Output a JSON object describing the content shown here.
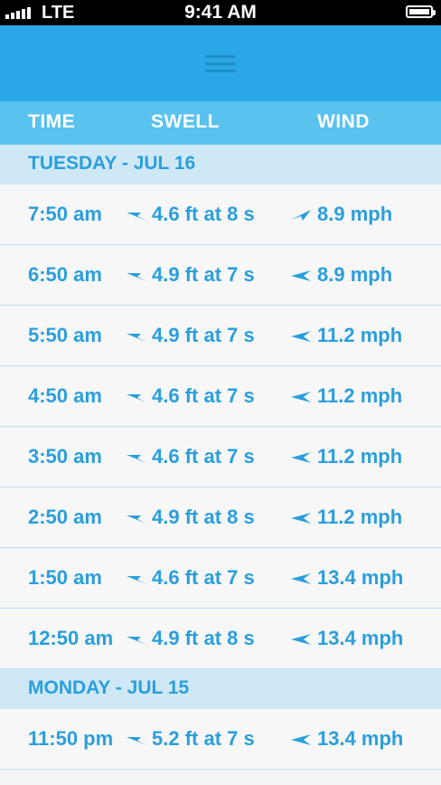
{
  "status_bar": {
    "carrier": "LTE",
    "time": "9:41 AM"
  },
  "columns": {
    "time": "TIME",
    "swell": "SWELL",
    "wind": "WIND"
  },
  "colors": {
    "accent": "#2aa7e6",
    "header_row": "#5ac2ef",
    "day_band": "#cfe8f6",
    "text": "#2a9fdc"
  },
  "days": [
    {
      "label": "TUESDAY - JUL 16",
      "rows": [
        {
          "time": "7:50 am",
          "swell": "4.6 ft at 8 s",
          "wind": "8.9 mph",
          "wind_dir": "ne"
        },
        {
          "time": "6:50 am",
          "swell": "4.9 ft at 7 s",
          "wind": "8.9 mph",
          "wind_dir": "w"
        },
        {
          "time": "5:50 am",
          "swell": "4.9 ft at 7 s",
          "wind": "11.2 mph",
          "wind_dir": "w"
        },
        {
          "time": "4:50 am",
          "swell": "4.6 ft at 7 s",
          "wind": "11.2 mph",
          "wind_dir": "w"
        },
        {
          "time": "3:50 am",
          "swell": "4.6 ft at 7 s",
          "wind": "11.2 mph",
          "wind_dir": "w"
        },
        {
          "time": "2:50 am",
          "swell": "4.9 ft at 8 s",
          "wind": "11.2 mph",
          "wind_dir": "w"
        },
        {
          "time": "1:50 am",
          "swell": "4.6 ft at 7 s",
          "wind": "13.4 mph",
          "wind_dir": "w"
        },
        {
          "time": "12:50 am",
          "swell": "4.9 ft at 8 s",
          "wind": "13.4 mph",
          "wind_dir": "w"
        }
      ]
    },
    {
      "label": "MONDAY - JUL 15",
      "rows": [
        {
          "time": "11:50 pm",
          "swell": "5.2 ft at 7 s",
          "wind": "13.4 mph",
          "wind_dir": "w"
        }
      ]
    }
  ]
}
